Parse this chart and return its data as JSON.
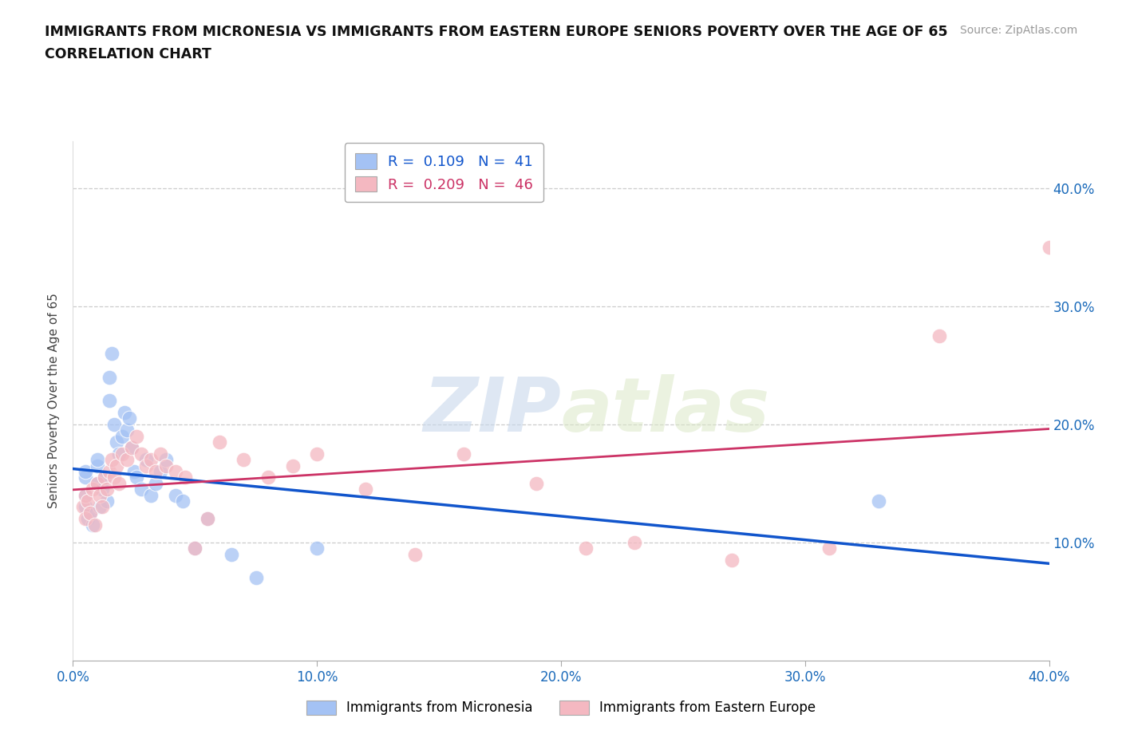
{
  "title_line1": "IMMIGRANTS FROM MICRONESIA VS IMMIGRANTS FROM EASTERN EUROPE SENIORS POVERTY OVER THE AGE OF 65",
  "title_line2": "CORRELATION CHART",
  "source_text": "Source: ZipAtlas.com",
  "ylabel": "Seniors Poverty Over the Age of 65",
  "xlim": [
    0.0,
    0.4
  ],
  "ylim": [
    0.0,
    0.44
  ],
  "ytick_vals": [
    0.0,
    0.1,
    0.2,
    0.3,
    0.4
  ],
  "ytick_labels": [
    "",
    "10.0%",
    "20.0%",
    "30.0%",
    "40.0%"
  ],
  "xtick_vals": [
    0.0,
    0.1,
    0.2,
    0.3,
    0.4
  ],
  "xtick_labels": [
    "0.0%",
    "10.0%",
    "20.0%",
    "30.0%",
    "40.0%"
  ],
  "blue_color": "#a4c2f4",
  "pink_color": "#f4b8c1",
  "blue_line_color": "#1155cc",
  "pink_line_color": "#cc3366",
  "r_blue": 0.109,
  "n_blue": 41,
  "r_pink": 0.209,
  "n_pink": 46,
  "watermark_zip": "ZIP",
  "watermark_atlas": "atlas",
  "legend_label_blue": "Immigrants from Micronesia",
  "legend_label_pink": "Immigrants from Eastern Europe",
  "blue_x": [
    0.005,
    0.005,
    0.005,
    0.005,
    0.006,
    0.007,
    0.008,
    0.01,
    0.01,
    0.01,
    0.011,
    0.012,
    0.013,
    0.014,
    0.015,
    0.015,
    0.016,
    0.017,
    0.018,
    0.019,
    0.02,
    0.021,
    0.022,
    0.023,
    0.024,
    0.025,
    0.026,
    0.028,
    0.03,
    0.032,
    0.034,
    0.036,
    0.038,
    0.042,
    0.045,
    0.05,
    0.055,
    0.065,
    0.075,
    0.1,
    0.33
  ],
  "blue_y": [
    0.13,
    0.14,
    0.155,
    0.16,
    0.12,
    0.125,
    0.115,
    0.15,
    0.165,
    0.17,
    0.13,
    0.145,
    0.155,
    0.135,
    0.22,
    0.24,
    0.26,
    0.2,
    0.185,
    0.175,
    0.19,
    0.21,
    0.195,
    0.205,
    0.18,
    0.16,
    0.155,
    0.145,
    0.17,
    0.14,
    0.15,
    0.16,
    0.17,
    0.14,
    0.135,
    0.095,
    0.12,
    0.09,
    0.07,
    0.095,
    0.135
  ],
  "pink_x": [
    0.004,
    0.005,
    0.005,
    0.006,
    0.007,
    0.008,
    0.009,
    0.01,
    0.011,
    0.012,
    0.013,
    0.014,
    0.015,
    0.016,
    0.017,
    0.018,
    0.019,
    0.02,
    0.022,
    0.024,
    0.026,
    0.028,
    0.03,
    0.032,
    0.034,
    0.036,
    0.038,
    0.042,
    0.046,
    0.05,
    0.055,
    0.06,
    0.07,
    0.08,
    0.09,
    0.1,
    0.12,
    0.14,
    0.16,
    0.19,
    0.21,
    0.23,
    0.27,
    0.31,
    0.355,
    0.4
  ],
  "pink_y": [
    0.13,
    0.14,
    0.12,
    0.135,
    0.125,
    0.145,
    0.115,
    0.15,
    0.14,
    0.13,
    0.155,
    0.145,
    0.16,
    0.17,
    0.155,
    0.165,
    0.15,
    0.175,
    0.17,
    0.18,
    0.19,
    0.175,
    0.165,
    0.17,
    0.16,
    0.175,
    0.165,
    0.16,
    0.155,
    0.095,
    0.12,
    0.185,
    0.17,
    0.155,
    0.165,
    0.175,
    0.145,
    0.09,
    0.175,
    0.15,
    0.095,
    0.1,
    0.085,
    0.095,
    0.275,
    0.35
  ]
}
